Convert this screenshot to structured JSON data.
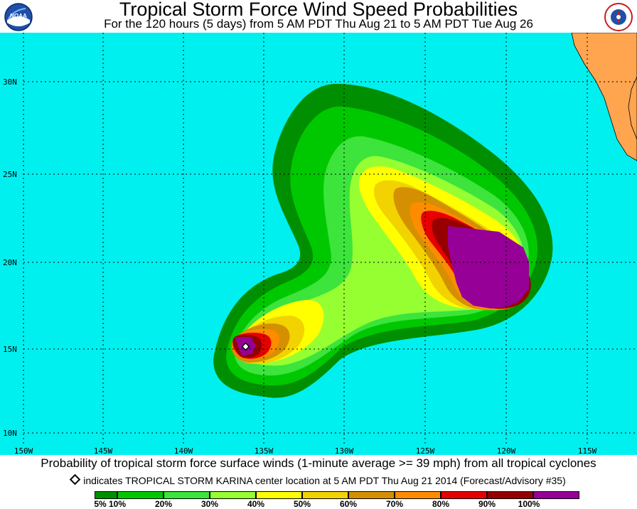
{
  "header": {
    "title": "Tropical Storm Force Wind Speed Probabilities",
    "subtitle": "For the 120 hours (5 days) from 5 AM PDT Thu Aug 21 to 5 AM PDT Tue Aug 26",
    "left_logo_text": "NOAA",
    "right_logo_text": "NATIONAL WEATHER SERVICE"
  },
  "map": {
    "ocean_color": "#00f0f0",
    "land_color": "#ffa54f",
    "grid_color": "#000000",
    "lon_labels": [
      "150W",
      "145W",
      "140W",
      "135W",
      "130W",
      "125W",
      "120W",
      "115W"
    ],
    "lat_labels": [
      "30N",
      "25N",
      "20N",
      "15N",
      "10N"
    ]
  },
  "storm": {
    "marker": "diamond",
    "name": "TROPICAL STORM KARINA"
  },
  "caption": "Probability of tropical storm force surface winds (1-minute average >= 39 mph) from all tropical cyclones",
  "center_note": "indicates TROPICAL STORM KARINA center location at 5 AM PDT Thu Aug 21 2014 (Forecast/Advisory #35)",
  "legend": {
    "labels": [
      "5%",
      "10%",
      "20%",
      "30%",
      "40%",
      "50%",
      "60%",
      "70%",
      "80%",
      "90%",
      "100%"
    ],
    "colors": [
      "#008f00",
      "#00c800",
      "#3ce43c",
      "#96ff32",
      "#ffff00",
      "#f2d200",
      "#d49000",
      "#ff8c00",
      "#e60000",
      "#960000",
      "#960096"
    ]
  }
}
